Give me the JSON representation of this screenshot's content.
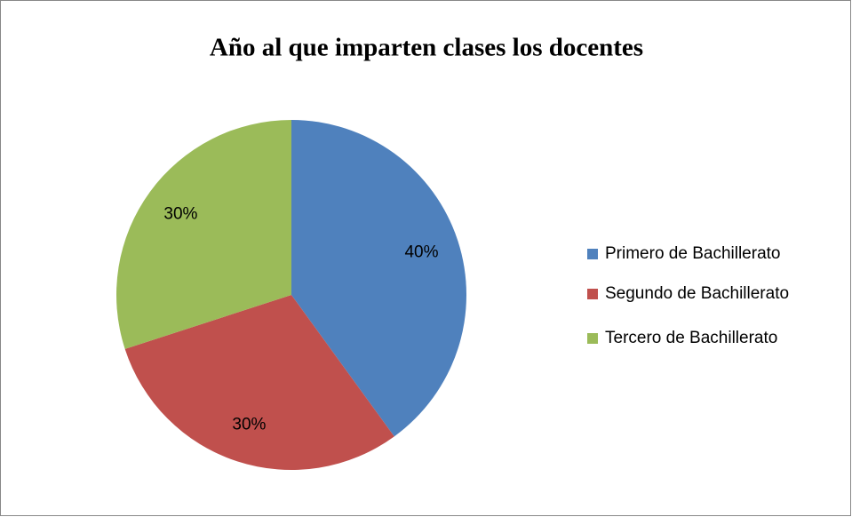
{
  "chart_data": {
    "type": "pie",
    "title": "Año al que imparten clases los docentes",
    "categories": [
      "Primero de Bachillerato",
      "Segundo de Bachillerato",
      "Tercero de Bachillerato"
    ],
    "values": [
      40,
      30,
      30
    ],
    "value_labels": [
      "40%",
      "30%",
      "30%"
    ],
    "colors": [
      "#4f81bd",
      "#c0504d",
      "#9bbb59"
    ],
    "legend": "right"
  }
}
